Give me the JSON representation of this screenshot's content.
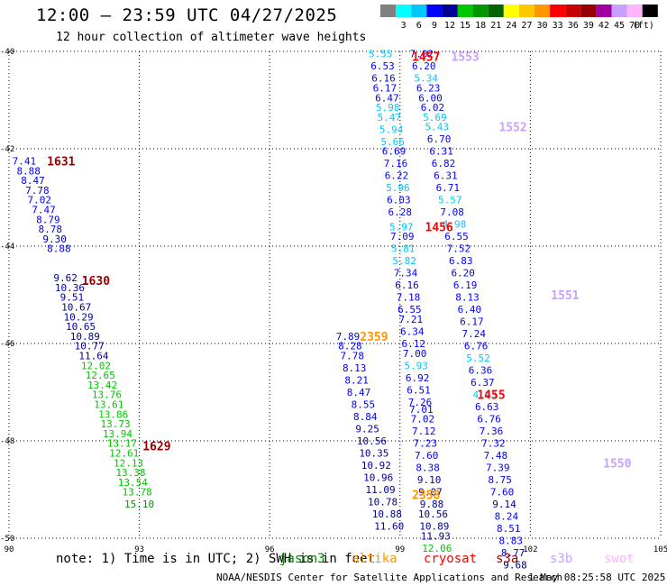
{
  "header": {
    "title": "12:00 — 23:59 UTC 04/27/2025",
    "subtitle": "12 hour collection of altimeter wave heights",
    "colorbar_unit": "(ft)"
  },
  "colorbar": [
    {
      "label": "",
      "color": "#808080"
    },
    {
      "label": "3",
      "color": "#00ffff"
    },
    {
      "label": "6",
      "color": "#00c8ff"
    },
    {
      "label": "9",
      "color": "#0000ff"
    },
    {
      "label": "12",
      "color": "#000096"
    },
    {
      "label": "15",
      "color": "#00c800"
    },
    {
      "label": "18",
      "color": "#009600"
    },
    {
      "label": "21",
      "color": "#006400"
    },
    {
      "label": "24",
      "color": "#ffff00"
    },
    {
      "label": "27",
      "color": "#ffc800"
    },
    {
      "label": "30",
      "color": "#ff9600"
    },
    {
      "label": "33",
      "color": "#ff0000"
    },
    {
      "label": "36",
      "color": "#c80000"
    },
    {
      "label": "39",
      "color": "#960000"
    },
    {
      "label": "42",
      "color": "#a000a0"
    },
    {
      "label": "45",
      "color": "#c8a0ff"
    },
    {
      "label": "70",
      "color": "#ffb4ff"
    },
    {
      "label": "",
      "color": "#000000"
    }
  ],
  "footer": {
    "note": "note:  1) Time is in UTC; 2) SWH is in feet",
    "legend": [
      {
        "name": "jason3",
        "color": "#008000"
      },
      {
        "name": "altika",
        "color": "#ff9600"
      },
      {
        "name": "cryosat",
        "color": "#ff0000"
      },
      {
        "name": "s3a",
        "color": "#960000"
      },
      {
        "name": "s3b",
        "color": "#c8a0ff"
      },
      {
        "name": "swot",
        "color": "#ffb4ff"
      }
    ],
    "credit": "NOAA/NESDIS Center for Satellite Applications and Research",
    "timestamp": "1 May 08:25:58 UTC 2025"
  },
  "chart_data": {
    "type": "scatter",
    "title": "12:00 — 23:59 UTC 04/27/2025",
    "subtitle": "12 hour collection of altimeter wave heights",
    "xlabel": "",
    "ylabel": "",
    "xlim": [
      90,
      105
    ],
    "ylim": [
      -50,
      -40
    ],
    "x_ticks": [
      90,
      93,
      96,
      99,
      102,
      105
    ],
    "y_ticks": [
      -40,
      -42,
      -44,
      -46,
      -48,
      -50
    ],
    "grid": true,
    "series": [
      {
        "name": "s3a",
        "color": "#960000",
        "time_labels": [
          {
            "label": "1631",
            "x": 91.2,
            "y": -42.25
          },
          {
            "label": "1630",
            "x": 92.0,
            "y": -44.7
          },
          {
            "label": "1629",
            "x": 93.4,
            "y": -48.1
          }
        ],
        "points": [
          {
            "x": 90.35,
            "y": -42.25,
            "v": 7.41
          },
          {
            "x": 90.45,
            "y": -42.45,
            "v": 8.88
          },
          {
            "x": 90.55,
            "y": -42.65,
            "v": 8.47
          },
          {
            "x": 90.65,
            "y": -42.85,
            "v": 7.78
          },
          {
            "x": 90.7,
            "y": -43.05,
            "v": 7.02
          },
          {
            "x": 90.8,
            "y": -43.25,
            "v": 7.47
          },
          {
            "x": 90.9,
            "y": -43.45,
            "v": 8.79
          },
          {
            "x": 90.95,
            "y": -43.65,
            "v": 8.78
          },
          {
            "x": 91.05,
            "y": -43.85,
            "v": 9.3
          },
          {
            "x": 91.15,
            "y": -44.05,
            "v": 8.88
          },
          {
            "x": 91.3,
            "y": -44.65,
            "v": 9.62
          },
          {
            "x": 91.4,
            "y": -44.85,
            "v": 10.36
          },
          {
            "x": 91.45,
            "y": -45.05,
            "v": 9.51
          },
          {
            "x": 91.55,
            "y": -45.25,
            "v": 10.67
          },
          {
            "x": 91.6,
            "y": -45.45,
            "v": 10.29
          },
          {
            "x": 91.65,
            "y": -45.65,
            "v": 10.65
          },
          {
            "x": 91.75,
            "y": -45.85,
            "v": 10.89
          },
          {
            "x": 91.85,
            "y": -46.05,
            "v": 10.77
          },
          {
            "x": 91.95,
            "y": -46.25,
            "v": 11.64
          },
          {
            "x": 92.0,
            "y": -46.45,
            "v": 12.02
          },
          {
            "x": 92.1,
            "y": -46.65,
            "v": 12.65
          },
          {
            "x": 92.15,
            "y": -46.85,
            "v": 13.42
          },
          {
            "x": 92.25,
            "y": -47.05,
            "v": 13.76
          },
          {
            "x": 92.3,
            "y": -47.25,
            "v": 13.61
          },
          {
            "x": 92.4,
            "y": -47.45,
            "v": 13.86
          },
          {
            "x": 92.45,
            "y": -47.65,
            "v": 13.73
          },
          {
            "x": 92.5,
            "y": -47.85,
            "v": 13.94
          },
          {
            "x": 92.6,
            "y": -48.05,
            "v": 13.17
          },
          {
            "x": 92.65,
            "y": -48.25,
            "v": 12.61
          },
          {
            "x": 92.75,
            "y": -48.45,
            "v": 12.13
          },
          {
            "x": 92.8,
            "y": -48.65,
            "v": 13.38
          },
          {
            "x": 92.85,
            "y": -48.85,
            "v": 13.54
          },
          {
            "x": 92.95,
            "y": -49.05,
            "v": 13.78
          },
          {
            "x": 93.0,
            "y": -49.3,
            "v": 15.1
          }
        ]
      },
      {
        "name": "altika",
        "color": "#ff9600",
        "time_labels": [
          {
            "label": "2359",
            "x": 98.4,
            "y": -45.85
          },
          {
            "label": "2358",
            "x": 99.6,
            "y": -49.1
          }
        ],
        "points": [
          {
            "x": 97.8,
            "y": -45.85,
            "v": 7.89
          },
          {
            "x": 97.85,
            "y": -46.05,
            "v": 8.28
          },
          {
            "x": 97.9,
            "y": -46.25,
            "v": 7.78
          },
          {
            "x": 97.95,
            "y": -46.5,
            "v": 8.13
          },
          {
            "x": 98.0,
            "y": -46.75,
            "v": 8.21
          },
          {
            "x": 98.05,
            "y": -47.0,
            "v": 8.47
          },
          {
            "x": 98.15,
            "y": -47.25,
            "v": 8.55
          },
          {
            "x": 98.2,
            "y": -47.5,
            "v": 8.84
          },
          {
            "x": 98.25,
            "y": -47.75,
            "v": 9.25
          },
          {
            "x": 98.35,
            "y": -48.0,
            "v": 10.56
          },
          {
            "x": 98.4,
            "y": -48.25,
            "v": 10.35
          },
          {
            "x": 98.45,
            "y": -48.5,
            "v": 10.92
          },
          {
            "x": 98.5,
            "y": -48.75,
            "v": 10.96
          },
          {
            "x": 98.55,
            "y": -49.0,
            "v": 11.09
          },
          {
            "x": 98.6,
            "y": -49.25,
            "v": 10.78
          },
          {
            "x": 98.7,
            "y": -49.5,
            "v": 10.88
          },
          {
            "x": 98.75,
            "y": -49.75,
            "v": 11.6
          }
        ]
      },
      {
        "name": "cryosat",
        "color": "#ff0000",
        "time_labels": [
          {
            "label": "1457",
            "x": 99.6,
            "y": -40.1
          },
          {
            "label": "1456",
            "x": 99.9,
            "y": -43.6
          },
          {
            "label": "1455",
            "x": 101.1,
            "y": -47.05
          }
        ],
        "points": [
          {
            "x": 98.55,
            "y": -40.05,
            "v": 5.55
          },
          {
            "x": 98.6,
            "y": -40.3,
            "v": 6.53
          },
          {
            "x": 98.62,
            "y": -40.55,
            "v": 6.16
          },
          {
            "x": 98.65,
            "y": -40.75,
            "v": 6.17
          },
          {
            "x": 98.7,
            "y": -40.95,
            "v": 6.47
          },
          {
            "x": 98.72,
            "y": -41.15,
            "v": 5.98
          },
          {
            "x": 98.75,
            "y": -41.35,
            "v": 5.47
          },
          {
            "x": 98.8,
            "y": -41.6,
            "v": 5.94
          },
          {
            "x": 98.83,
            "y": -41.85,
            "v": 5.66
          },
          {
            "x": 98.86,
            "y": -42.05,
            "v": 6.69
          },
          {
            "x": 98.9,
            "y": -42.3,
            "v": 7.16
          },
          {
            "x": 98.92,
            "y": -42.55,
            "v": 6.22
          },
          {
            "x": 98.95,
            "y": -42.8,
            "v": 5.96
          },
          {
            "x": 98.97,
            "y": -43.05,
            "v": 6.03
          },
          {
            "x": 99.0,
            "y": -43.3,
            "v": 6.28
          },
          {
            "x": 99.03,
            "y": -43.6,
            "v": 5.97
          },
          {
            "x": 99.05,
            "y": -43.8,
            "v": 7.09
          },
          {
            "x": 99.07,
            "y": -44.05,
            "v": 5.81
          },
          {
            "x": 99.1,
            "y": -44.3,
            "v": 5.82
          },
          {
            "x": 99.13,
            "y": -44.55,
            "v": 7.34
          },
          {
            "x": 99.16,
            "y": -44.8,
            "v": 6.16
          },
          {
            "x": 99.19,
            "y": -45.05,
            "v": 7.18
          },
          {
            "x": 99.22,
            "y": -45.3,
            "v": 6.55
          },
          {
            "x": 99.25,
            "y": -45.5,
            "v": 7.21
          },
          {
            "x": 99.28,
            "y": -45.75,
            "v": 6.34
          },
          {
            "x": 99.31,
            "y": -46.0,
            "v": 6.12
          },
          {
            "x": 99.34,
            "y": -46.2,
            "v": 7.0
          },
          {
            "x": 99.37,
            "y": -46.45,
            "v": 5.93
          },
          {
            "x": 99.4,
            "y": -46.7,
            "v": 6.92
          },
          {
            "x": 99.43,
            "y": -46.95,
            "v": 6.51
          },
          {
            "x": 99.46,
            "y": -47.2,
            "v": 7.26
          },
          {
            "x": 99.49,
            "y": -47.35,
            "v": 7.01
          },
          {
            "x": 99.52,
            "y": -47.55,
            "v": 7.02
          },
          {
            "x": 99.55,
            "y": -47.8,
            "v": 7.12
          },
          {
            "x": 99.58,
            "y": -48.05,
            "v": 7.23
          },
          {
            "x": 99.61,
            "y": -48.3,
            "v": 7.6
          },
          {
            "x": 99.64,
            "y": -48.55,
            "v": 8.38
          },
          {
            "x": 99.67,
            "y": -48.8,
            "v": 9.1
          },
          {
            "x": 99.7,
            "y": -49.05,
            "v": 9.07
          },
          {
            "x": 99.73,
            "y": -49.3,
            "v": 9.88
          },
          {
            "x": 99.76,
            "y": -49.5,
            "v": 10.56
          },
          {
            "x": 99.79,
            "y": -49.75,
            "v": 10.89
          },
          {
            "x": 99.82,
            "y": -49.95,
            "v": 11.93
          },
          {
            "x": 99.85,
            "y": -50.2,
            "v": 12.06
          }
        ]
      },
      {
        "name": "s3b",
        "color": "#c8a0ff",
        "time_labels": [
          {
            "label": "1553",
            "x": 100.5,
            "y": -40.1
          },
          {
            "label": "1552",
            "x": 101.6,
            "y": -41.55
          },
          {
            "label": "1551",
            "x": 102.8,
            "y": -45.0
          },
          {
            "label": "1550",
            "x": 104.0,
            "y": -48.45
          }
        ],
        "points": [
          {
            "x": 99.5,
            "y": -40.05,
            "v": 7.02
          },
          {
            "x": 99.55,
            "y": -40.3,
            "v": 6.2
          },
          {
            "x": 99.6,
            "y": -40.55,
            "v": 5.34
          },
          {
            "x": 99.65,
            "y": -40.75,
            "v": 6.23
          },
          {
            "x": 99.7,
            "y": -40.95,
            "v": 6.0
          },
          {
            "x": 99.75,
            "y": -41.15,
            "v": 6.02
          },
          {
            "x": 99.8,
            "y": -41.35,
            "v": 5.69
          },
          {
            "x": 99.85,
            "y": -41.55,
            "v": 5.43
          },
          {
            "x": 99.9,
            "y": -41.8,
            "v": 6.7
          },
          {
            "x": 99.95,
            "y": -42.05,
            "v": 6.31
          },
          {
            "x": 100.0,
            "y": -42.3,
            "v": 6.82
          },
          {
            "x": 100.05,
            "y": -42.55,
            "v": 6.31
          },
          {
            "x": 100.1,
            "y": -42.8,
            "v": 6.71
          },
          {
            "x": 100.15,
            "y": -43.05,
            "v": 5.57
          },
          {
            "x": 100.2,
            "y": -43.3,
            "v": 7.08
          },
          {
            "x": 100.25,
            "y": -43.55,
            "v": 4.98
          },
          {
            "x": 100.3,
            "y": -43.8,
            "v": 6.55
          },
          {
            "x": 100.35,
            "y": -44.05,
            "v": 7.52
          },
          {
            "x": 100.4,
            "y": -44.3,
            "v": 6.83
          },
          {
            "x": 100.45,
            "y": -44.55,
            "v": 6.2
          },
          {
            "x": 100.5,
            "y": -44.8,
            "v": 6.19
          },
          {
            "x": 100.55,
            "y": -45.05,
            "v": 8.13
          },
          {
            "x": 100.6,
            "y": -45.3,
            "v": 6.4
          },
          {
            "x": 100.65,
            "y": -45.55,
            "v": 6.17
          },
          {
            "x": 100.7,
            "y": -45.8,
            "v": 7.24
          },
          {
            "x": 100.75,
            "y": -46.05,
            "v": 6.76
          },
          {
            "x": 100.8,
            "y": -46.3,
            "v": 5.52
          },
          {
            "x": 100.85,
            "y": -46.55,
            "v": 6.36
          },
          {
            "x": 100.9,
            "y": -46.8,
            "v": 6.37
          },
          {
            "x": 100.95,
            "y": -47.05,
            "v": 4.93
          },
          {
            "x": 101.0,
            "y": -47.3,
            "v": 6.63
          },
          {
            "x": 101.05,
            "y": -47.55,
            "v": 6.76
          },
          {
            "x": 101.1,
            "y": -47.8,
            "v": 7.36
          },
          {
            "x": 101.15,
            "y": -48.05,
            "v": 7.32
          },
          {
            "x": 101.2,
            "y": -48.3,
            "v": 7.48
          },
          {
            "x": 101.25,
            "y": -48.55,
            "v": 7.39
          },
          {
            "x": 101.3,
            "y": -48.8,
            "v": 8.75
          },
          {
            "x": 101.35,
            "y": -49.05,
            "v": 7.6
          },
          {
            "x": 101.4,
            "y": -49.3,
            "v": 9.14
          },
          {
            "x": 101.45,
            "y": -49.55,
            "v": 8.24
          },
          {
            "x": 101.5,
            "y": -49.8,
            "v": 8.51
          },
          {
            "x": 101.55,
            "y": -50.05,
            "v": 8.83
          },
          {
            "x": 101.6,
            "y": -50.3,
            "v": 8.77
          },
          {
            "x": 101.65,
            "y": -50.55,
            "v": 9.68
          }
        ]
      }
    ]
  }
}
